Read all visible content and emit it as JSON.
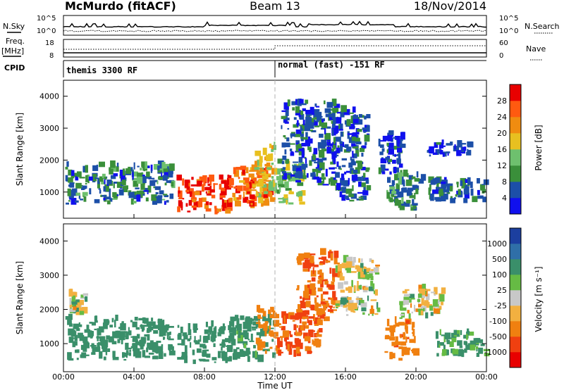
{
  "header": {
    "station": "McMurdo (fitACF)",
    "beam": "Beam 13",
    "date": "18/Nov/2014"
  },
  "strip_panels": {
    "nsky_label": "N.Sky",
    "nsky_ticks": [
      "10^5",
      "10^0"
    ],
    "nsearch_label": "N.Search",
    "nsearch_ticks": [
      "10^5",
      "10^0"
    ],
    "freq_label": "Freq.",
    "freq_unit": "[MHz]",
    "freq_ticks": [
      "18",
      "8"
    ],
    "nave_label": "Nave",
    "nave_ticks": [
      "60",
      "0"
    ],
    "cpid_label": "CPID",
    "cpid_segments": [
      {
        "label": "themis 3300 RF",
        "start_hour": 0
      },
      {
        "label": "normal (fast) -151 RF",
        "start_hour": 12
      }
    ]
  },
  "chart_data": [
    {
      "type": "heatmap",
      "title": "",
      "xlabel": "Time UT",
      "ylabel": "Slant Range [km]",
      "x_range_hours": [
        0,
        24
      ],
      "x_ticks": [
        "00:00",
        "04:00",
        "08:00",
        "12:00",
        "16:00",
        "20:00",
        "00:00"
      ],
      "ylim": [
        180,
        4500
      ],
      "y_ticks": [
        1000,
        2000,
        3000,
        4000
      ],
      "colorbar": {
        "label": "Power [dB]",
        "ticks": [
          4,
          8,
          12,
          16,
          20,
          24,
          28
        ],
        "colors": [
          "#1010ee",
          "#1c4fa8",
          "#3a8f3a",
          "#6ec06e",
          "#e8c020",
          "#f08c10",
          "#ff5a10",
          "#e80000"
        ]
      },
      "echo_regions": [
        {
          "t0": 0.1,
          "t1": 6.2,
          "r0": 600,
          "r1": 1800,
          "power": 8
        },
        {
          "t0": 6.4,
          "t1": 9.4,
          "r0": 300,
          "r1": 1400,
          "power": 28
        },
        {
          "t0": 9.4,
          "t1": 11.9,
          "r0": 450,
          "r1": 1700,
          "power": 24
        },
        {
          "t0": 10.8,
          "t1": 12.0,
          "r0": 800,
          "r1": 2400,
          "power": 18
        },
        {
          "t0": 12.0,
          "t1": 13.5,
          "r0": 600,
          "r1": 1900,
          "power": 14
        },
        {
          "t0": 12.3,
          "t1": 15.4,
          "r0": 1200,
          "r1": 3800,
          "power": 6
        },
        {
          "t0": 15.2,
          "t1": 17.2,
          "r0": 700,
          "r1": 3500,
          "power": 6
        },
        {
          "t0": 18.3,
          "t1": 20.3,
          "r0": 400,
          "r1": 1500,
          "power": 9
        },
        {
          "t0": 17.8,
          "t1": 19.2,
          "r0": 1500,
          "r1": 2800,
          "power": 5
        },
        {
          "t0": 20.6,
          "t1": 23.9,
          "r0": 600,
          "r1": 1300,
          "power": 7
        },
        {
          "t0": 20.5,
          "t1": 23.0,
          "r0": 2100,
          "r1": 2500,
          "power": 4
        }
      ]
    },
    {
      "type": "heatmap",
      "title": "",
      "xlabel": "Time UT",
      "ylabel": "Slant Range [km]",
      "x_range_hours": [
        0,
        24
      ],
      "x_ticks": [
        "00:00",
        "04:00",
        "08:00",
        "12:00",
        "16:00",
        "20:00",
        "00:00"
      ],
      "ylim": [
        180,
        4500
      ],
      "y_ticks": [
        1000,
        2000,
        3000,
        4000
      ],
      "colorbar": {
        "label": "Velocity [m s⁻¹]",
        "ticks": [
          "1000",
          "500",
          "100",
          "25",
          "-25",
          "-100",
          "-500",
          "-1000"
        ],
        "colors": [
          "#1c3f9f",
          "#2f6fa8",
          "#3a8f6a",
          "#66bb44",
          "#c8c8c8",
          "#f2b040",
          "#f08010",
          "#f04010",
          "#e80000"
        ]
      },
      "echo_regions": [
        {
          "t0": 0.1,
          "t1": 6.2,
          "r0": 500,
          "r1": 1700,
          "velocity": 300
        },
        {
          "t0": 0.3,
          "t1": 1.2,
          "r0": 1800,
          "r1": 2400,
          "velocity": 0
        },
        {
          "t0": 6.4,
          "t1": 9.4,
          "r0": 400,
          "r1": 1500,
          "velocity": 300
        },
        {
          "t0": 9.4,
          "t1": 11.9,
          "r0": 450,
          "r1": 1700,
          "velocity": 200
        },
        {
          "t0": 10.9,
          "t1": 12.0,
          "r0": 700,
          "r1": 2000,
          "velocity": -300
        },
        {
          "t0": 12.0,
          "t1": 14.5,
          "r0": 600,
          "r1": 1800,
          "velocity": -500
        },
        {
          "t0": 13.2,
          "t1": 15.4,
          "r0": 1600,
          "r1": 3600,
          "velocity": -500
        },
        {
          "t0": 15.4,
          "t1": 17.8,
          "r0": 1800,
          "r1": 3400,
          "velocity": 0
        },
        {
          "t0": 18.2,
          "t1": 19.9,
          "r0": 500,
          "r1": 1600,
          "velocity": -400
        },
        {
          "t0": 19.0,
          "t1": 21.5,
          "r0": 1700,
          "r1": 2600,
          "velocity": 0
        },
        {
          "t0": 21.0,
          "t1": 23.9,
          "r0": 600,
          "r1": 1300,
          "velocity": 150
        }
      ]
    }
  ]
}
